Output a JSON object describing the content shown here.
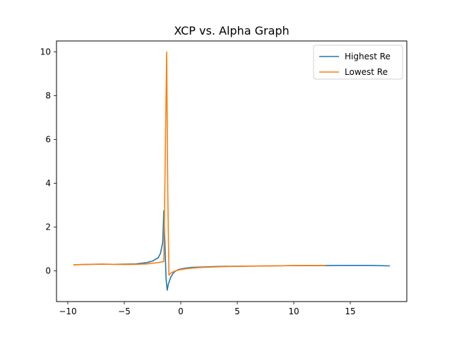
{
  "chart_data": {
    "type": "line",
    "title": "XCP vs. Alpha Graph",
    "xlabel": "",
    "ylabel": "",
    "xlim": [
      -11,
      20
    ],
    "ylim": [
      -1.4,
      10.5
    ],
    "xticks": [
      -10,
      -5,
      0,
      5,
      10,
      15
    ],
    "xtick_labels": [
      "−10",
      "−5",
      "0",
      "5",
      "10",
      "15"
    ],
    "yticks": [
      0,
      2,
      4,
      6,
      8,
      10
    ],
    "ytick_labels": [
      "0",
      "2",
      "4",
      "6",
      "8",
      "10"
    ],
    "grid": false,
    "legend_placement": "top-right",
    "series": [
      {
        "name": "Highest Re",
        "color": "#1f77b4",
        "x": [
          -9.5,
          -8,
          -7,
          -6,
          -5,
          -4,
          -3,
          -2.5,
          -2,
          -1.8,
          -1.6,
          -1.5,
          -1.3,
          -1.2,
          -1.1,
          -0.9,
          -0.7,
          -0.5,
          -0.25,
          0,
          0.5,
          1,
          2,
          3,
          4,
          5,
          6,
          8,
          10,
          12,
          14,
          16,
          17,
          18.5
        ],
        "y": [
          0.28,
          0.3,
          0.31,
          0.3,
          0.31,
          0.32,
          0.38,
          0.45,
          0.6,
          0.8,
          1.3,
          2.75,
          -0.4,
          -0.88,
          -0.6,
          -0.3,
          -0.12,
          -0.02,
          0.05,
          0.09,
          0.13,
          0.16,
          0.18,
          0.2,
          0.21,
          0.21,
          0.22,
          0.23,
          0.24,
          0.24,
          0.25,
          0.25,
          0.25,
          0.23
        ]
      },
      {
        "name": "Lowest Re",
        "color": "#ff7f0e",
        "x": [
          -9.5,
          -8,
          -7,
          -6,
          -5,
          -4,
          -3,
          -2.5,
          -2,
          -1.5,
          -1.25,
          -1.15,
          -1.05,
          -0.9,
          -0.7,
          -0.5,
          0,
          0.5,
          1,
          2,
          3,
          4,
          5,
          6,
          8,
          10,
          12,
          12.8
        ],
        "y": [
          0.28,
          0.3,
          0.31,
          0.3,
          0.29,
          0.3,
          0.32,
          0.35,
          0.38,
          0.43,
          10.0,
          3.5,
          -0.2,
          -0.1,
          -0.05,
          0.0,
          0.06,
          0.1,
          0.13,
          0.16,
          0.18,
          0.2,
          0.21,
          0.22,
          0.23,
          0.24,
          0.25,
          0.25
        ]
      }
    ]
  }
}
